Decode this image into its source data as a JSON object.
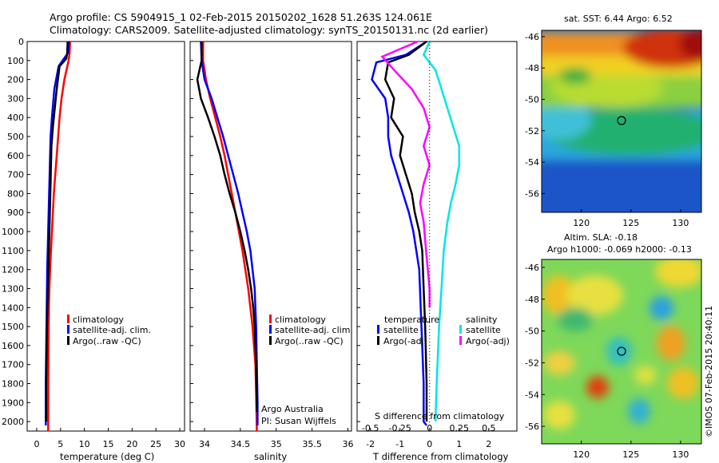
{
  "header": {
    "line1": "Argo profile: CS 5904915_1 02-Feb-2015 20150202_1628 51.263S 124.061E",
    "line2": "Climatology: CARS2009. Satellite-adjusted climatology: synTS_20150131.nc (2d earlier)"
  },
  "map_top": {
    "title": "sat. SST: 6.44 Argo: 6.52",
    "x_ticks": [
      "120",
      "125",
      "130"
    ],
    "y_ticks": [
      "-46",
      "-48",
      "-50",
      "-52",
      "-54",
      "-56"
    ]
  },
  "map_bottom": {
    "title1": "Altim. SLA: -0.18",
    "title2": "Argo h1000: -0.069 h2000: -0.13",
    "x_ticks": [
      "120",
      "125",
      "130"
    ],
    "y_ticks": [
      "-46",
      "-48",
      "-50",
      "-52",
      "-54",
      "-56"
    ]
  },
  "legend": {
    "climatology": "climatology",
    "satellite": "satellite-adj. clim.",
    "argo": "Argo(..raw -QC)"
  },
  "diff_legend": {
    "temperature": "temperature",
    "salinity": "salinity",
    "satellite": "satellite",
    "argo": "Argo(-adj)"
  },
  "credits": {
    "line1": "Argo Australia",
    "line2": "PI: Susan Wijffels",
    "imos": "©IMOS 07-Feb-2015 20:40:11"
  },
  "colors": {
    "climatology": "#ff0000",
    "satellite": "#0000ff",
    "argo": "#000000",
    "sal_satellite": "#00e6e6",
    "sal_argo": "#ff00ff"
  },
  "chart_data": [
    {
      "type": "line",
      "xlabel": "temperature (deg C)",
      "x_ticks": [
        "0",
        "5",
        "10",
        "15",
        "20",
        "25",
        "30"
      ],
      "xlim": [
        -2,
        31
      ],
      "ylim": [
        2050,
        0
      ],
      "y_ticks": [
        "0",
        "100",
        "200",
        "300",
        "400",
        "500",
        "600",
        "700",
        "800",
        "900",
        "1000",
        "1100",
        "1200",
        "1300",
        "1400",
        "1500",
        "1600",
        "1700",
        "1800",
        "1900",
        "2000"
      ],
      "series": [
        {
          "name": "climatology",
          "color_key": "climatology",
          "x": [
            7.0,
            6.9,
            6.7,
            5.8,
            5.2,
            4.8,
            4.5,
            4.2,
            3.9,
            3.6,
            3.4,
            3.2,
            3.0,
            2.8,
            2.65,
            2.55,
            2.5,
            2.45,
            2.42,
            2.4
          ],
          "y": [
            0,
            60,
            100,
            200,
            300,
            400,
            500,
            600,
            700,
            800,
            900,
            1000,
            1100,
            1200,
            1300,
            1400,
            1500,
            1600,
            1800,
            2050
          ]
        },
        {
          "name": "satellite-adj. clim.",
          "color_key": "satellite",
          "x": [
            6.8,
            6.6,
            6.0,
            4.6,
            3.7,
            3.2,
            2.9,
            2.8,
            2.7,
            2.6,
            2.5,
            2.4,
            2.3,
            2.2,
            2.1,
            2.0,
            1.9,
            1.9
          ],
          "y": [
            0,
            60,
            80,
            130,
            250,
            400,
            500,
            600,
            700,
            800,
            900,
            1000,
            1100,
            1200,
            1400,
            1600,
            1800,
            2020
          ]
        },
        {
          "name": "Argo(..raw -QC)",
          "color_key": "argo",
          "x": [
            6.5,
            6.4,
            6.2,
            4.8,
            4.2,
            3.8,
            3.4,
            3.1,
            3.0,
            2.9,
            2.8,
            2.7,
            2.6,
            2.5,
            2.4,
            2.3,
            2.2,
            2.1,
            2.0,
            2.0
          ],
          "y": [
            0,
            60,
            90,
            130,
            250,
            350,
            450,
            550,
            650,
            750,
            850,
            950,
            1050,
            1150,
            1250,
            1350,
            1450,
            1550,
            1800,
            2000
          ]
        }
      ],
      "legend": "center"
    },
    {
      "type": "line",
      "xlabel": "salinity",
      "x_ticks": [
        "34",
        "34.5",
        "35",
        "35.5",
        "36"
      ],
      "xlim": [
        33.8,
        36.05
      ],
      "ylim": [
        2050,
        0
      ],
      "series": [
        {
          "name": "climatology",
          "color_key": "climatology",
          "x": [
            33.98,
            33.98,
            34.02,
            34.08,
            34.15,
            34.22,
            34.28,
            34.33,
            34.38,
            34.43,
            34.48,
            34.53,
            34.57,
            34.61,
            34.64,
            34.67,
            34.69,
            34.71,
            34.72,
            34.73
          ],
          "y": [
            0,
            100,
            200,
            300,
            400,
            500,
            600,
            700,
            800,
            900,
            1000,
            1100,
            1200,
            1300,
            1400,
            1500,
            1600,
            1700,
            1850,
            2050
          ]
        },
        {
          "name": "satellite-adj. clim.",
          "color_key": "satellite",
          "x": [
            33.95,
            33.96,
            34.0,
            34.1,
            34.18,
            34.26,
            34.33,
            34.4,
            34.47,
            34.53,
            34.59,
            34.64,
            34.67,
            34.7,
            34.72,
            34.73,
            34.74,
            34.74
          ],
          "y": [
            0,
            100,
            200,
            300,
            400,
            500,
            600,
            700,
            800,
            900,
            1000,
            1100,
            1200,
            1300,
            1500,
            1700,
            1900,
            2020
          ]
        },
        {
          "name": "Argo(..raw -QC)",
          "color_key": "argo",
          "x": [
            33.96,
            33.96,
            33.9,
            33.95,
            34.05,
            34.14,
            34.22,
            34.28,
            34.35,
            34.43,
            34.5,
            34.56,
            34.61,
            34.65,
            34.68,
            34.7,
            34.72,
            34.73
          ],
          "y": [
            0,
            100,
            200,
            300,
            400,
            500,
            600,
            700,
            800,
            900,
            1000,
            1100,
            1200,
            1300,
            1400,
            1500,
            1700,
            1950
          ]
        }
      ],
      "legend": "bottom"
    },
    {
      "type": "line",
      "xlabel": "T difference from climatology",
      "title_bottom": "S difference from climatology",
      "x_ticks": [
        "-2",
        "-1",
        "0",
        "1",
        "2"
      ],
      "s_ticks": [
        "-0.5",
        "-0.25",
        "0",
        "0.25",
        "0.5"
      ],
      "xlim": [
        -2.45,
        2.95
      ],
      "ylim": [
        2050,
        0
      ],
      "series": [
        {
          "name": "temperature satellite",
          "color_key": "satellite",
          "x": [
            -0.1,
            -0.8,
            -1.8,
            -1.95,
            -1.5,
            -1.4,
            -1.4,
            -1.3,
            -1.1,
            -0.9,
            -0.7,
            -0.55,
            -0.45,
            -0.35,
            -0.3,
            -0.25,
            -0.2,
            -0.2,
            -0.1
          ],
          "y": [
            0,
            70,
            110,
            200,
            300,
            400,
            500,
            600,
            700,
            800,
            900,
            1000,
            1100,
            1200,
            1400,
            1600,
            1800,
            2000,
            2020
          ]
        },
        {
          "name": "temperature Argo(-adj)",
          "color_key": "argo",
          "x": [
            -0.1,
            -0.7,
            -1.4,
            -1.5,
            -1.2,
            -1.3,
            -0.9,
            -1.0,
            -0.8,
            -0.6,
            -0.5,
            -0.35,
            -0.25,
            -0.2,
            -0.15,
            -0.1,
            -0.1
          ],
          "y": [
            0,
            70,
            110,
            200,
            300,
            400,
            500,
            600,
            700,
            800,
            900,
            1000,
            1100,
            1300,
            1500,
            1800,
            2000
          ]
        },
        {
          "name": "salinity satellite",
          "color_key": "sal_satellite",
          "x": [
            0.0,
            -0.05,
            0.05,
            0.1,
            0.15,
            0.2,
            0.25,
            0.25,
            0.22,
            0.18,
            0.15,
            0.12,
            0.1,
            0.08,
            0.06,
            0.05
          ],
          "y": [
            0,
            70,
            150,
            250,
            350,
            450,
            550,
            650,
            750,
            850,
            950,
            1100,
            1300,
            1500,
            1800,
            2000
          ]
        },
        {
          "name": "salinity Argo(-adj)",
          "color_key": "sal_argo",
          "x": [
            -0.1,
            -0.4,
            -0.3,
            -0.15,
            -0.05,
            0.0,
            -0.05,
            0.0,
            -0.05,
            -0.08,
            -0.05,
            -0.03,
            0.0,
            0.0
          ],
          "y": [
            0,
            80,
            150,
            250,
            350,
            450,
            550,
            650,
            750,
            850,
            950,
            1100,
            1300,
            1400
          ]
        }
      ],
      "legend": "bottom"
    }
  ]
}
